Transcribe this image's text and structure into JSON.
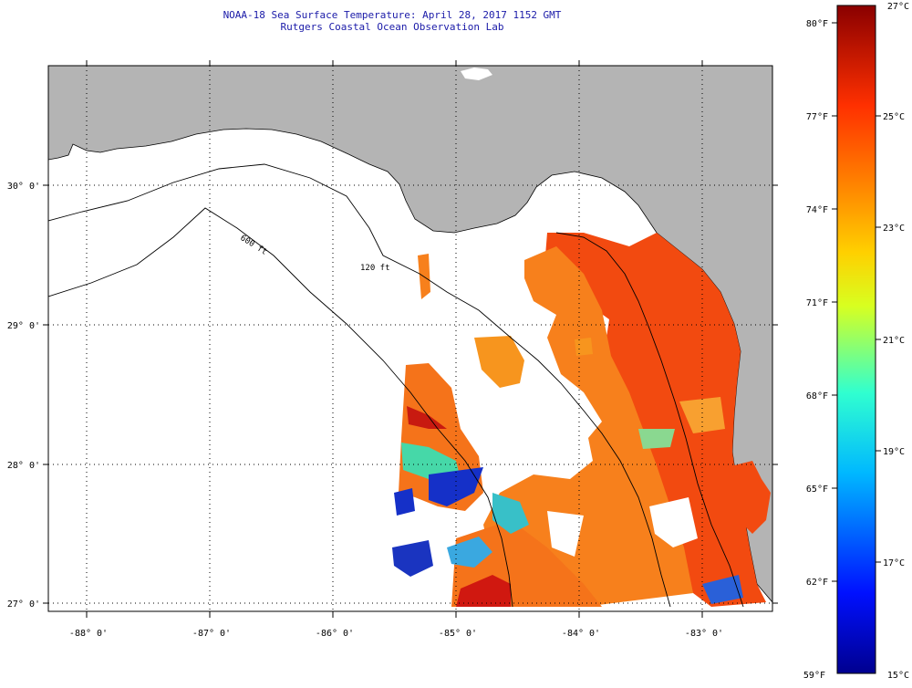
{
  "header": {
    "title": "NOAA-18 Sea Surface Temperature:  April 28, 2017 1152 GMT",
    "subtitle": "Rutgers Coastal Ocean Observation Lab"
  },
  "axes": {
    "lat_labels": [
      "30° 0'",
      "29° 0'",
      "28° 0'",
      "27° 0'"
    ],
    "lon_labels": [
      "-88° 0'",
      "-87° 0'",
      "-86° 0'",
      "-85° 0'",
      "-84° 0'",
      "-83° 0'"
    ]
  },
  "contours": {
    "shallow": "120 ft",
    "deep": "600 ft"
  },
  "colorbar": {
    "fahrenheit": [
      "80°F",
      "77°F",
      "74°F",
      "71°F",
      "68°F",
      "65°F",
      "62°F",
      "59°F"
    ],
    "celsius": [
      "27°C",
      "25°C",
      "23°C",
      "21°C",
      "19°C",
      "17°C",
      "15°C"
    ]
  },
  "colors": {
    "land": "#b4b4b4",
    "nodata": "#ffffff",
    "sst_warm": "#f24a10",
    "sst_mid": "#f7801c",
    "sst_cool": "#1530c8"
  }
}
